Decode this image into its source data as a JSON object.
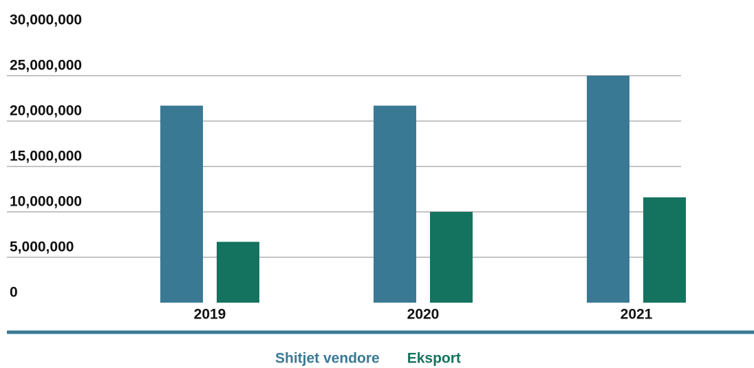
{
  "chart_data": {
    "type": "bar",
    "categories": [
      "2019",
      "2020",
      "2021"
    ],
    "series": [
      {
        "name": "Shitjet vendore",
        "color": "#3a7994",
        "values": [
          21700000,
          21700000,
          25000000
        ]
      },
      {
        "name": "Eksport",
        "color": "#14735f",
        "values": [
          6700000,
          10000000,
          11600000
        ]
      }
    ],
    "ylim": [
      0,
      30000000
    ],
    "yticks": [
      {
        "value": 0,
        "label": "0"
      },
      {
        "value": 5000000,
        "label": "5,000,000"
      },
      {
        "value": 10000000,
        "label": "10,000,000"
      },
      {
        "value": 15000000,
        "label": "15,000,000"
      },
      {
        "value": 20000000,
        "label": "20,000,000"
      },
      {
        "value": 25000000,
        "label": "25,000,000"
      },
      {
        "value": 30000000,
        "label": "30,000,000"
      }
    ],
    "grid": true
  }
}
